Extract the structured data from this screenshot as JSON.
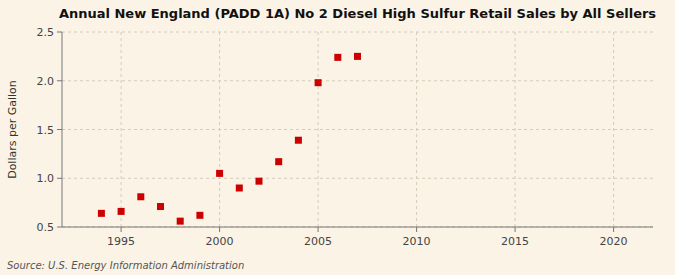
{
  "chart_data": {
    "type": "scatter",
    "title": "Annual New England (PADD 1A) No 2 Diesel High Sulfur Retail Sales by All Sellers",
    "y_label": "Dollars per Gallon",
    "source": "Source: U.S. Energy Information Administration",
    "x": [
      1994,
      1995,
      1996,
      1997,
      1998,
      1999,
      2000,
      2001,
      2002,
      2003,
      2004,
      2005,
      2006,
      2007
    ],
    "values": [
      0.64,
      0.66,
      0.81,
      0.71,
      0.56,
      0.62,
      1.05,
      0.9,
      0.97,
      1.17,
      1.39,
      1.98,
      2.24,
      2.25
    ],
    "color": "#cc0000",
    "marker": "square",
    "xlim": [
      1992,
      2022
    ],
    "ylim": [
      0.5,
      2.5
    ],
    "xticks": [
      1995,
      2000,
      2005,
      2010,
      2015,
      2020
    ],
    "yticks": [
      0.5,
      {
        "value": 1.0,
        "label": "1.0"
      },
      1.5,
      {
        "value": 2.0,
        "label": "2.0"
      },
      2.5
    ],
    "grid": true
  }
}
